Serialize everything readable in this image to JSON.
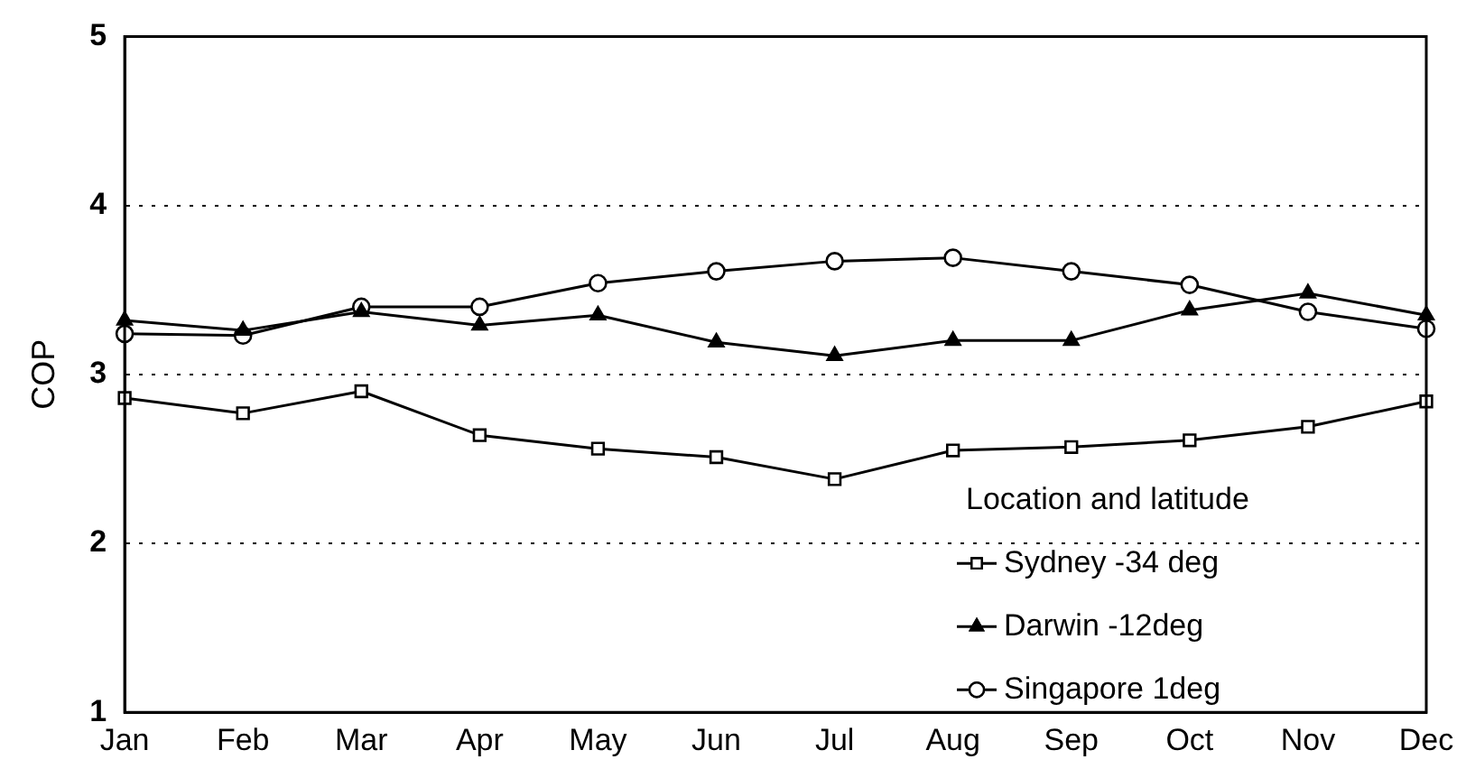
{
  "chart_data": {
    "type": "line",
    "ylabel": "COP",
    "legend_title": "Location and latitude",
    "categories": [
      "Jan",
      "Feb",
      "Mar",
      "Apr",
      "May",
      "Jun",
      "Jul",
      "Aug",
      "Sep",
      "Oct",
      "Nov",
      "Dec"
    ],
    "series": [
      {
        "name": "Sydney -34 deg",
        "color": "#000000",
        "marker": "square",
        "values": [
          2.86,
          2.77,
          2.9,
          2.64,
          2.56,
          2.51,
          2.38,
          2.55,
          2.57,
          2.61,
          2.69,
          2.84
        ]
      },
      {
        "name": "Darwin -12deg",
        "color": "#000000",
        "marker": "triangle",
        "values": [
          3.32,
          3.26,
          3.37,
          3.29,
          3.35,
          3.19,
          3.11,
          3.2,
          3.2,
          3.38,
          3.48,
          3.35
        ]
      },
      {
        "name": "Singapore 1deg",
        "color": "#000000",
        "marker": "circle",
        "values": [
          3.24,
          3.23,
          3.4,
          3.4,
          3.54,
          3.61,
          3.67,
          3.69,
          3.61,
          3.53,
          3.37,
          3.27
        ]
      }
    ],
    "ylim": [
      1,
      5
    ],
    "yticks": [
      1,
      2,
      3,
      4,
      5
    ],
    "grid": "y",
    "legend": "bottom right",
    "line_style": "solid"
  }
}
